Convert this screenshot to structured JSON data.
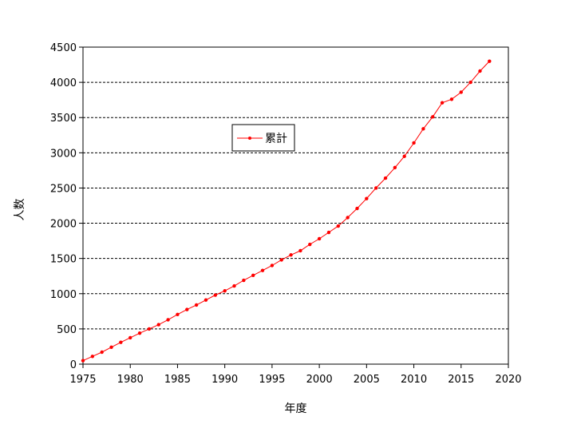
{
  "chart_data": {
    "type": "line",
    "title": "",
    "xlabel": "年度",
    "ylabel": "人数",
    "xlim": [
      1975,
      2020
    ],
    "ylim": [
      0,
      4500
    ],
    "xticks": [
      1975,
      1980,
      1985,
      1990,
      1995,
      2000,
      2005,
      2010,
      2015,
      2020
    ],
    "yticks": [
      0,
      500,
      1000,
      1500,
      2000,
      2500,
      3000,
      3500,
      4000,
      4500
    ],
    "grid": "horizontal dashed",
    "legend_position": "upper-left inside plot",
    "series": [
      {
        "name": "累計",
        "color": "#ff0000",
        "x": [
          1975,
          1976,
          1977,
          1978,
          1979,
          1980,
          1981,
          1982,
          1983,
          1984,
          1985,
          1986,
          1987,
          1988,
          1989,
          1990,
          1991,
          1992,
          1993,
          1994,
          1995,
          1996,
          1997,
          1998,
          1999,
          2000,
          2001,
          2002,
          2003,
          2004,
          2005,
          2006,
          2007,
          2008,
          2009,
          2010,
          2011,
          2012,
          2013,
          2014,
          2015,
          2016,
          2017,
          2018
        ],
        "y": [
          50,
          110,
          170,
          240,
          310,
          375,
          440,
          500,
          560,
          630,
          705,
          775,
          840,
          910,
          980,
          1040,
          1110,
          1190,
          1260,
          1330,
          1400,
          1480,
          1550,
          1610,
          1700,
          1780,
          1870,
          1960,
          2080,
          2210,
          2350,
          2500,
          2640,
          2790,
          2950,
          3140,
          3340,
          3510,
          3710,
          3760,
          3860,
          4000,
          4160,
          4300
        ]
      }
    ]
  }
}
